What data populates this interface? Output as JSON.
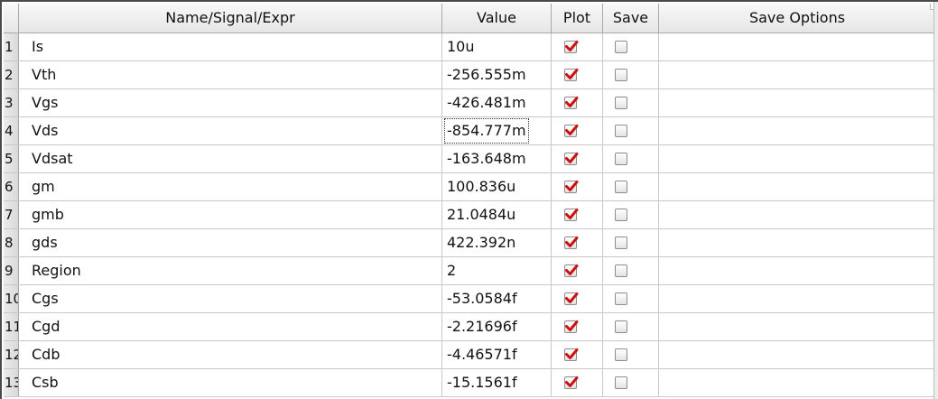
{
  "table": {
    "headers": {
      "name": "Name/Signal/Expr",
      "value": "Value",
      "plot": "Plot",
      "save": "Save",
      "save_options": "Save Options"
    },
    "rows": [
      {
        "num": "1",
        "name": "Is",
        "value": "10u",
        "plot": true,
        "save": false,
        "save_options": ""
      },
      {
        "num": "2",
        "name": "Vth",
        "value": "-256.555m",
        "plot": true,
        "save": false,
        "save_options": ""
      },
      {
        "num": "3",
        "name": "Vgs",
        "value": "-426.481m",
        "plot": true,
        "save": false,
        "save_options": ""
      },
      {
        "num": "4",
        "name": "Vds",
        "value": "-854.777m",
        "plot": true,
        "save": false,
        "save_options": ""
      },
      {
        "num": "5",
        "name": "Vdsat",
        "value": "-163.648m",
        "plot": true,
        "save": false,
        "save_options": ""
      },
      {
        "num": "6",
        "name": "gm",
        "value": "100.836u",
        "plot": true,
        "save": false,
        "save_options": ""
      },
      {
        "num": "7",
        "name": "gmb",
        "value": "21.0484u",
        "plot": true,
        "save": false,
        "save_options": ""
      },
      {
        "num": "8",
        "name": "gds",
        "value": "422.392n",
        "plot": true,
        "save": false,
        "save_options": ""
      },
      {
        "num": "9",
        "name": "Region",
        "value": "2",
        "plot": true,
        "save": false,
        "save_options": ""
      },
      {
        "num": "10",
        "name": "Cgs",
        "value": "-53.0584f",
        "plot": true,
        "save": false,
        "save_options": ""
      },
      {
        "num": "11",
        "name": "Cgd",
        "value": "-2.21696f",
        "plot": true,
        "save": false,
        "save_options": ""
      },
      {
        "num": "12",
        "name": "Cdb",
        "value": "-4.46571f",
        "plot": true,
        "save": false,
        "save_options": ""
      },
      {
        "num": "13",
        "name": "Csb",
        "value": "-15.1561f",
        "plot": true,
        "save": false,
        "save_options": ""
      }
    ],
    "focused_row": 3
  },
  "colors": {
    "checkmark": "#cc1111",
    "grid": "#c8c8c8",
    "header_bg": "#e6e6e6",
    "rownum_bg": "#d9d9d9"
  }
}
